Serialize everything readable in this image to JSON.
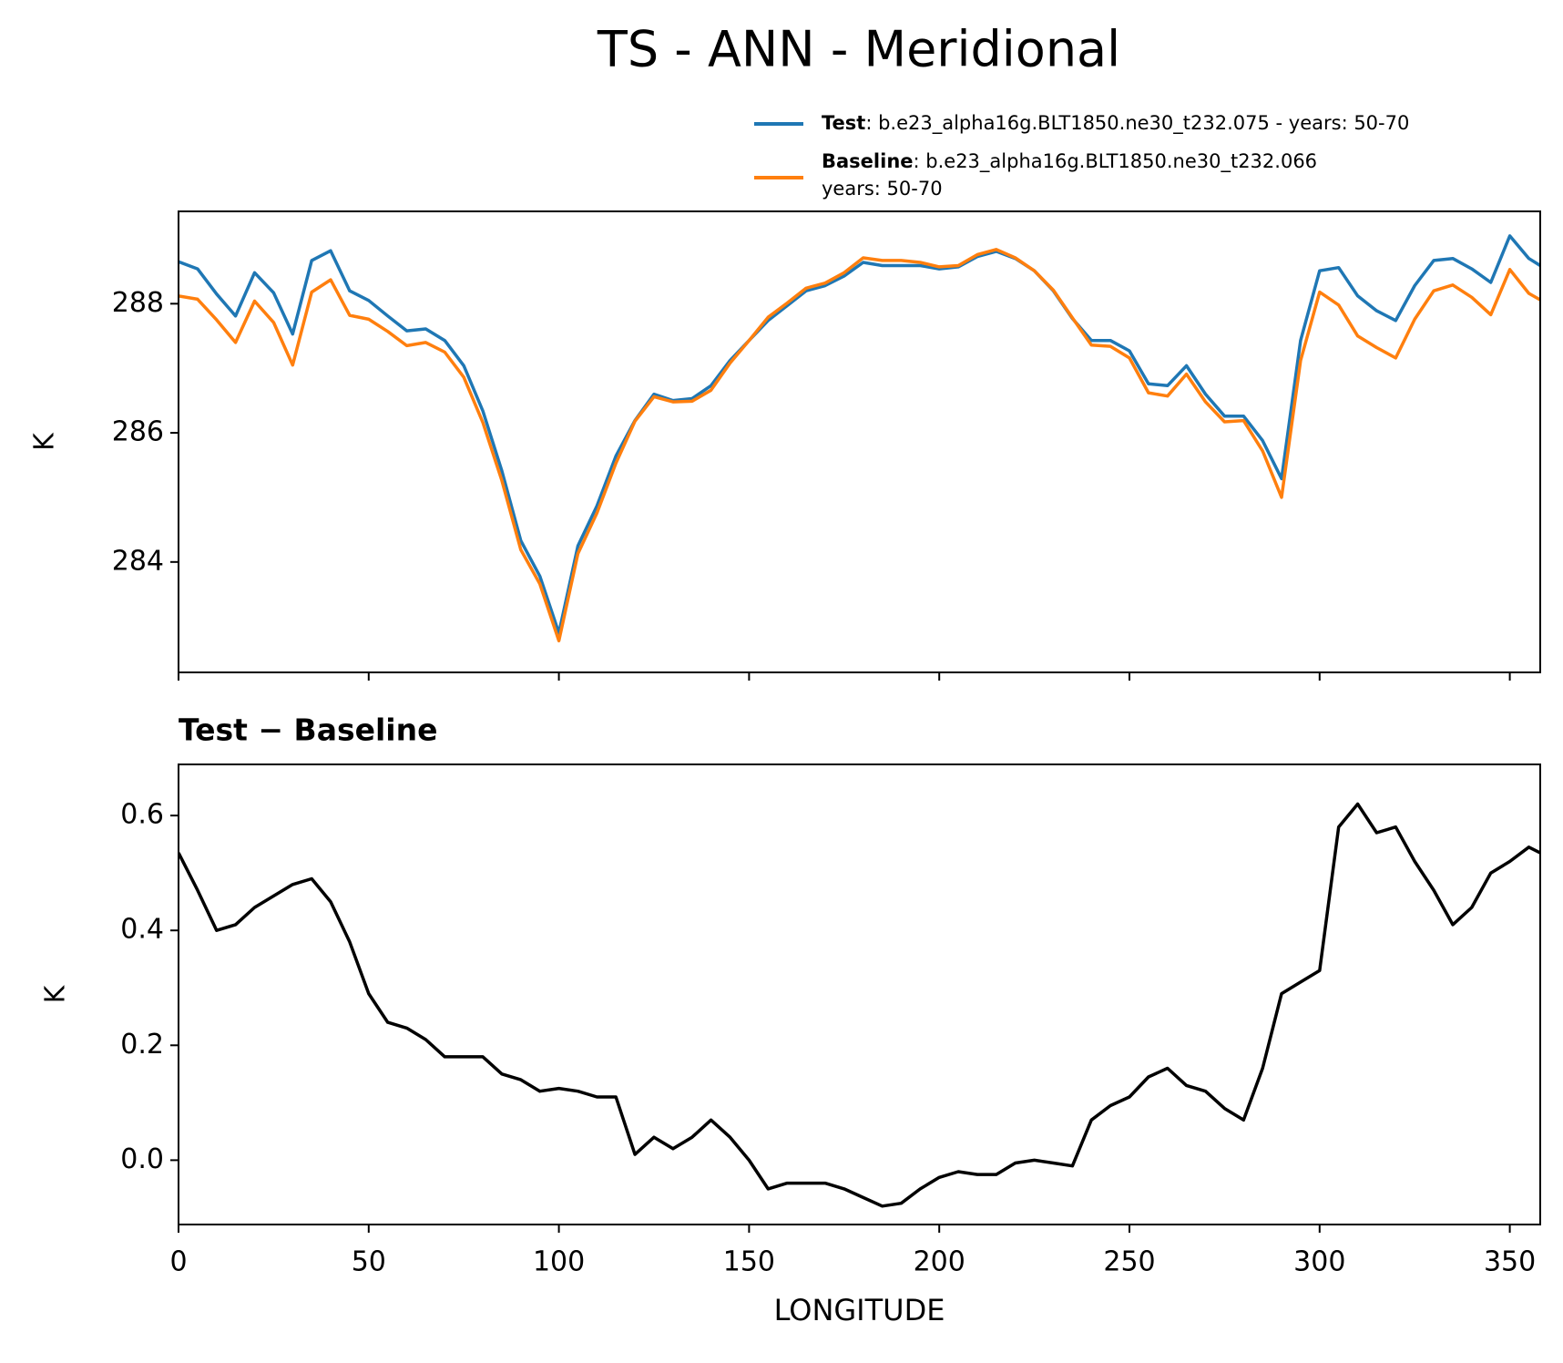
{
  "chart_data": [
    {
      "type": "line",
      "title": "TS - ANN - Meridional",
      "ylabel": "K",
      "xlim": [
        0,
        358
      ],
      "ylim": [
        282.29,
        289.43
      ],
      "xticks": [
        0,
        50,
        100,
        150,
        200,
        250,
        300,
        350
      ],
      "xtick_labels": false,
      "yticks": [
        284,
        286,
        288
      ],
      "x": [
        0,
        5,
        10,
        15,
        20,
        25,
        30,
        35,
        40,
        45,
        50,
        55,
        60,
        65,
        70,
        75,
        80,
        85,
        90,
        95,
        100,
        105,
        110,
        115,
        120,
        125,
        130,
        135,
        140,
        145,
        150,
        155,
        160,
        165,
        170,
        175,
        180,
        185,
        190,
        195,
        200,
        205,
        210,
        215,
        220,
        225,
        230,
        235,
        240,
        245,
        250,
        255,
        260,
        265,
        270,
        275,
        280,
        285,
        290,
        295,
        300,
        305,
        310,
        315,
        320,
        325,
        330,
        335,
        340,
        345,
        350,
        355,
        358
      ],
      "series": [
        {
          "name": "Test",
          "description": ": b.e23_alpha16g.BLT1850.ne30_t232.075 - years: 50-70",
          "color": "#1f77b4",
          "values": [
            288.65,
            288.54,
            288.15,
            287.81,
            288.48,
            288.17,
            287.53,
            288.67,
            288.82,
            288.2,
            288.05,
            287.81,
            287.58,
            287.61,
            287.43,
            287.04,
            286.34,
            285.41,
            284.33,
            283.78,
            282.9,
            284.25,
            284.87,
            285.64,
            286.19,
            286.6,
            286.5,
            286.53,
            286.73,
            287.12,
            287.43,
            287.74,
            287.97,
            288.2,
            288.28,
            288.43,
            288.64,
            288.59,
            288.59,
            288.59,
            288.54,
            288.57,
            288.73,
            288.81,
            288.7,
            288.51,
            288.2,
            287.77,
            287.43,
            287.43,
            287.27,
            286.76,
            286.73,
            287.04,
            286.6,
            286.26,
            286.26,
            285.88,
            285.29,
            287.43,
            288.51,
            288.56,
            288.12,
            287.89,
            287.74,
            288.28,
            288.67,
            288.7,
            288.54,
            288.33,
            289.05,
            288.7,
            288.59
          ]
        },
        {
          "name": "Baseline",
          "description": ": b.e23_alpha16g.BLT1850.ne30_t232.066",
          "description_line2": "years: 50-70",
          "color": "#ff7f0e",
          "values": [
            288.12,
            288.07,
            287.75,
            287.4,
            288.04,
            287.71,
            287.05,
            288.18,
            288.37,
            287.82,
            287.76,
            287.57,
            287.35,
            287.4,
            287.25,
            286.86,
            286.16,
            285.26,
            284.19,
            283.66,
            282.78,
            284.13,
            284.76,
            285.53,
            286.18,
            286.56,
            286.48,
            286.49,
            286.66,
            287.08,
            287.43,
            287.79,
            288.01,
            288.24,
            288.32,
            288.48,
            288.71,
            288.67,
            288.67,
            288.64,
            288.57,
            288.59,
            288.76,
            288.84,
            288.71,
            288.51,
            288.21,
            287.78,
            287.36,
            287.34,
            287.16,
            286.62,
            286.57,
            286.91,
            286.48,
            286.17,
            286.19,
            285.72,
            285.0,
            287.12,
            288.18,
            287.98,
            287.5,
            287.32,
            287.16,
            287.76,
            288.2,
            288.29,
            288.1,
            287.83,
            288.53,
            288.16,
            288.06
          ]
        }
      ]
    },
    {
      "type": "line",
      "title": "Test − Baseline",
      "xlabel": "LONGITUDE",
      "ylabel": "K",
      "xlim": [
        0,
        358
      ],
      "ylim": [
        -0.112,
        0.689
      ],
      "xticks": [
        0,
        50,
        100,
        150,
        200,
        250,
        300,
        350
      ],
      "yticks": [
        {
          "value": 0,
          "label": "0.0"
        },
        0.2,
        0.4,
        0.6
      ],
      "x": [
        0,
        5,
        10,
        15,
        20,
        25,
        30,
        35,
        40,
        45,
        50,
        55,
        60,
        65,
        70,
        75,
        80,
        85,
        90,
        95,
        100,
        105,
        110,
        115,
        120,
        125,
        130,
        135,
        140,
        145,
        150,
        155,
        160,
        165,
        170,
        175,
        180,
        185,
        190,
        195,
        200,
        205,
        210,
        215,
        220,
        225,
        230,
        235,
        240,
        245,
        250,
        255,
        260,
        265,
        270,
        275,
        280,
        285,
        290,
        295,
        300,
        305,
        310,
        315,
        320,
        325,
        330,
        335,
        340,
        345,
        350,
        355,
        358
      ],
      "color": "#000000",
      "values": [
        0.535,
        0.47,
        0.4,
        0.41,
        0.44,
        0.46,
        0.48,
        0.49,
        0.45,
        0.38,
        0.29,
        0.24,
        0.23,
        0.21,
        0.18,
        0.18,
        0.18,
        0.15,
        0.14,
        0.12,
        0.125,
        0.12,
        0.11,
        0.11,
        0.01,
        0.04,
        0.02,
        0.04,
        0.07,
        0.04,
        0.0,
        -0.05,
        -0.04,
        -0.04,
        -0.04,
        -0.05,
        -0.065,
        -0.08,
        -0.075,
        -0.05,
        -0.03,
        -0.02,
        -0.025,
        -0.025,
        -0.005,
        0.0,
        -0.005,
        -0.01,
        0.07,
        0.095,
        0.11,
        0.145,
        0.16,
        0.13,
        0.12,
        0.09,
        0.07,
        0.16,
        0.29,
        0.31,
        0.33,
        0.58,
        0.62,
        0.57,
        0.58,
        0.52,
        0.47,
        0.41,
        0.44,
        0.5,
        0.52,
        0.545,
        0.535
      ]
    }
  ]
}
